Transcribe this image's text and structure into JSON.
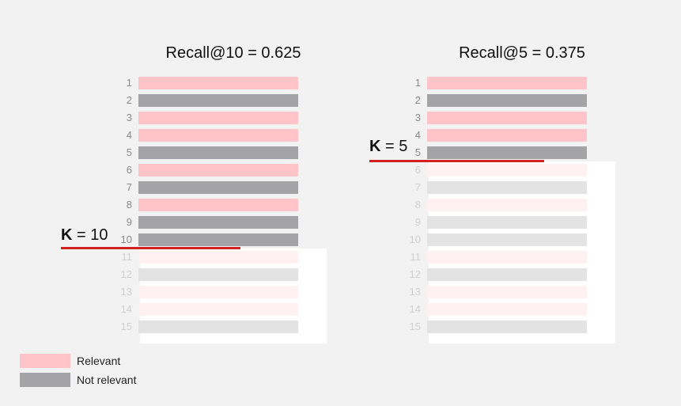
{
  "colors": {
    "relevant": "#ffc4c8",
    "not_relevant": "#a4a3a6",
    "relevant_faded": "#fff0f1",
    "not_relevant_faded": "#e3e3e3",
    "cutoff_line": "#d32020"
  },
  "panels": [
    {
      "title": "Recall@10 = 0.625",
      "k_symbol": "K",
      "k_text": "= 10",
      "k": 10,
      "items": [
        {
          "rank": "1",
          "relevant": true
        },
        {
          "rank": "2",
          "relevant": false
        },
        {
          "rank": "3",
          "relevant": true
        },
        {
          "rank": "4",
          "relevant": true
        },
        {
          "rank": "5",
          "relevant": false
        },
        {
          "rank": "6",
          "relevant": true
        },
        {
          "rank": "7",
          "relevant": false
        },
        {
          "rank": "8",
          "relevant": true
        },
        {
          "rank": "9",
          "relevant": false
        },
        {
          "rank": "10",
          "relevant": false
        },
        {
          "rank": "11",
          "relevant": true
        },
        {
          "rank": "12",
          "relevant": false
        },
        {
          "rank": "13",
          "relevant": true
        },
        {
          "rank": "14",
          "relevant": true
        },
        {
          "rank": "15",
          "relevant": false
        }
      ]
    },
    {
      "title": "Recall@5 = 0.375",
      "k_symbol": "K",
      "k_text": "= 5",
      "k": 5,
      "items": [
        {
          "rank": "1",
          "relevant": true
        },
        {
          "rank": "2",
          "relevant": false
        },
        {
          "rank": "3",
          "relevant": true
        },
        {
          "rank": "4",
          "relevant": true
        },
        {
          "rank": "5",
          "relevant": false
        },
        {
          "rank": "6",
          "relevant": true
        },
        {
          "rank": "7",
          "relevant": false
        },
        {
          "rank": "8",
          "relevant": true
        },
        {
          "rank": "9",
          "relevant": false
        },
        {
          "rank": "10",
          "relevant": false
        },
        {
          "rank": "11",
          "relevant": true
        },
        {
          "rank": "12",
          "relevant": false
        },
        {
          "rank": "13",
          "relevant": true
        },
        {
          "rank": "14",
          "relevant": true
        },
        {
          "rank": "15",
          "relevant": false
        }
      ]
    }
  ],
  "legend": {
    "relevant_label": "Relevant",
    "not_relevant_label": "Not relevant"
  }
}
